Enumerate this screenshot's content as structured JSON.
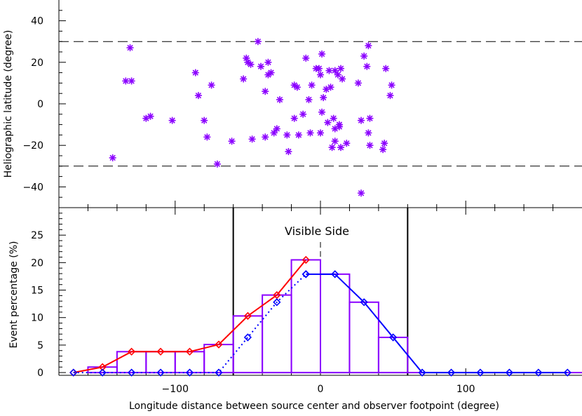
{
  "chart_data": [
    {
      "type": "scatter",
      "ylabel": "Heliographic latitude (degree)",
      "xlim": [
        -180,
        180
      ],
      "ylim": [
        -50,
        50
      ],
      "yticks": [
        -40,
        -20,
        0,
        20,
        40
      ],
      "reference_lines": [
        30,
        -30
      ],
      "marker": "asterisk",
      "marker_color": "#8b00ff",
      "points": [
        {
          "x": -143,
          "y": -26
        },
        {
          "x": -131,
          "y": 27
        },
        {
          "x": -134,
          "y": 11
        },
        {
          "x": -130,
          "y": 11
        },
        {
          "x": -120,
          "y": -7
        },
        {
          "x": -117,
          "y": -6
        },
        {
          "x": -102,
          "y": -8
        },
        {
          "x": -86,
          "y": 15
        },
        {
          "x": -84,
          "y": 4
        },
        {
          "x": -80,
          "y": -8
        },
        {
          "x": -78,
          "y": -16
        },
        {
          "x": -75,
          "y": 9
        },
        {
          "x": -71,
          "y": -29
        },
        {
          "x": -61,
          "y": -18
        },
        {
          "x": -53,
          "y": 12
        },
        {
          "x": -51,
          "y": 22
        },
        {
          "x": -50,
          "y": 20
        },
        {
          "x": -48,
          "y": 19
        },
        {
          "x": -47,
          "y": -17
        },
        {
          "x": -43,
          "y": 30
        },
        {
          "x": -41,
          "y": 18
        },
        {
          "x": -38,
          "y": 6
        },
        {
          "x": -36,
          "y": 20
        },
        {
          "x": -36,
          "y": 14
        },
        {
          "x": -34,
          "y": 15
        },
        {
          "x": -38,
          "y": -16
        },
        {
          "x": -32,
          "y": -14
        },
        {
          "x": -30,
          "y": -12
        },
        {
          "x": -28,
          "y": 2
        },
        {
          "x": -23,
          "y": -15
        },
        {
          "x": -22,
          "y": -23
        },
        {
          "x": -18,
          "y": -7
        },
        {
          "x": -18,
          "y": 9
        },
        {
          "x": -16,
          "y": 8
        },
        {
          "x": -15,
          "y": -15
        },
        {
          "x": -12,
          "y": -5
        },
        {
          "x": -10,
          "y": 22
        },
        {
          "x": -8,
          "y": 2
        },
        {
          "x": -7,
          "y": -14
        },
        {
          "x": -6,
          "y": 9
        },
        {
          "x": -3,
          "y": 17
        },
        {
          "x": -1,
          "y": 17
        },
        {
          "x": 0,
          "y": -14
        },
        {
          "x": 1,
          "y": 24
        },
        {
          "x": 1,
          "y": -4
        },
        {
          "x": 0,
          "y": 14
        },
        {
          "x": 2,
          "y": 3
        },
        {
          "x": 4,
          "y": 7
        },
        {
          "x": 5,
          "y": -9
        },
        {
          "x": 6,
          "y": 16
        },
        {
          "x": 7,
          "y": 8
        },
        {
          "x": 8,
          "y": -21
        },
        {
          "x": 9,
          "y": -7
        },
        {
          "x": 10,
          "y": -18
        },
        {
          "x": 10,
          "y": 16
        },
        {
          "x": 10,
          "y": -12
        },
        {
          "x": 12,
          "y": 14
        },
        {
          "x": 13,
          "y": -10
        },
        {
          "x": 13,
          "y": -11
        },
        {
          "x": 14,
          "y": 17
        },
        {
          "x": 14,
          "y": -21
        },
        {
          "x": 15,
          "y": 12
        },
        {
          "x": 18,
          "y": -19
        },
        {
          "x": 26,
          "y": 10
        },
        {
          "x": 28,
          "y": -43
        },
        {
          "x": 28,
          "y": -8
        },
        {
          "x": 30,
          "y": 23
        },
        {
          "x": 32,
          "y": 18
        },
        {
          "x": 33,
          "y": 28
        },
        {
          "x": 33,
          "y": -14
        },
        {
          "x": 34,
          "y": -20
        },
        {
          "x": 34,
          "y": -7
        },
        {
          "x": 43,
          "y": -22
        },
        {
          "x": 44,
          "y": -19
        },
        {
          "x": 45,
          "y": 17
        },
        {
          "x": 48,
          "y": 4
        },
        {
          "x": 49,
          "y": 9
        }
      ]
    },
    {
      "type": "bar",
      "xlabel": "Longitude distance between source center and observer footpoint (degree)",
      "ylabel": "Event percentage (%)",
      "xlim": [
        -180,
        180
      ],
      "ylim": [
        -0.5,
        30
      ],
      "yticks": [
        0,
        5,
        10,
        15,
        20,
        25
      ],
      "xticks": [
        -100,
        0,
        100
      ],
      "annotation": "Visible Side",
      "vertical_lines": [
        -60,
        60
      ],
      "dashed_line": 0,
      "histogram": {
        "color": "#8b00ff",
        "bin_edges": [
          -160,
          -140,
          -120,
          -100,
          -80,
          -60,
          -40,
          -20,
          0,
          20,
          40,
          60
        ],
        "values": [
          1.0,
          3.8,
          3.8,
          3.8,
          5.1,
          10.3,
          14.1,
          20.5,
          17.9,
          12.8,
          6.4
        ]
      },
      "series": [
        {
          "color": "#ff0000",
          "style": "solid",
          "marker": "diamond",
          "x": [
            -170,
            -150,
            -130,
            -110,
            -90,
            -70,
            -50,
            -30,
            -10
          ],
          "values": [
            0,
            1.0,
            3.8,
            3.8,
            3.8,
            5.1,
            10.3,
            14.1,
            20.5
          ]
        },
        {
          "color": "#0000ff",
          "style": "dotted",
          "marker": "diamond",
          "x": [
            -170,
            -150,
            -130,
            -110,
            -90,
            -70,
            -50,
            -30,
            -10
          ],
          "values": [
            0,
            0,
            0,
            0,
            0,
            0,
            6.4,
            12.8,
            17.9
          ]
        },
        {
          "color": "#0000ff",
          "style": "solid",
          "marker": "diamond",
          "x": [
            -10,
            10,
            30,
            50,
            70,
            90,
            110,
            130,
            150,
            170
          ],
          "values": [
            17.9,
            17.9,
            12.8,
            6.4,
            0,
            0,
            0,
            0,
            0,
            0
          ]
        }
      ]
    }
  ]
}
